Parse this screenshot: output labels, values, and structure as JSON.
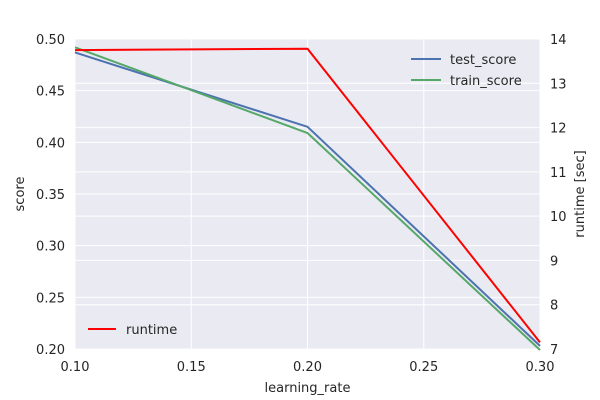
{
  "chart_data": {
    "type": "line",
    "xlabel": "learning_rate",
    "ylabel": "score",
    "y2label": "runtime [sec]",
    "xlim": [
      0.1,
      0.3
    ],
    "ylim": [
      0.2,
      0.5
    ],
    "y2lim": [
      7,
      14
    ],
    "grid": true,
    "x_ticks": [
      "0.10",
      "0.15",
      "0.20",
      "0.25",
      "0.30"
    ],
    "y_ticks": [
      "0.20",
      "0.25",
      "0.30",
      "0.35",
      "0.40",
      "0.45",
      "0.50"
    ],
    "y2_ticks": [
      "7",
      "8",
      "9",
      "10",
      "11",
      "12",
      "13",
      "14"
    ],
    "x": [
      0.1,
      0.2,
      0.3
    ],
    "series": [
      {
        "name": "test_score",
        "axis": "left",
        "color": "#4c72b0",
        "values": [
          0.487,
          0.415,
          0.203
        ]
      },
      {
        "name": "train_score",
        "axis": "left",
        "color": "#55a868",
        "values": [
          0.492,
          0.409,
          0.199
        ]
      },
      {
        "name": "runtime",
        "axis": "right",
        "color": "#ff0000",
        "values": [
          13.75,
          13.78,
          7.15
        ]
      }
    ],
    "legend_upper": "top-right",
    "legend_lower": "bottom-left"
  }
}
